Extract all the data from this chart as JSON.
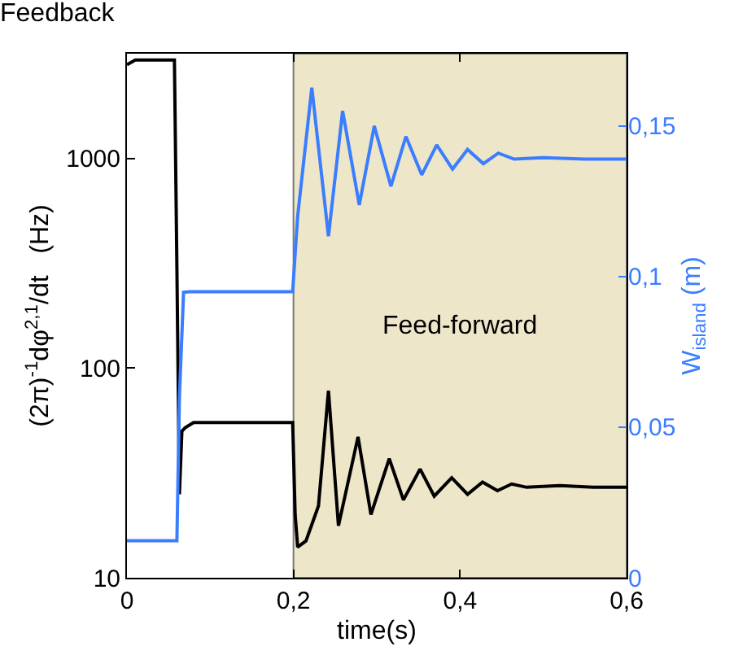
{
  "chart_data": {
    "type": "line",
    "title": "Feedback",
    "xlabel": "time(s)",
    "ylabel": "(2π)$^{-1}$dφ$^{2,1}$/dt   (Hz)",
    "y2label": "W$_{island}$ (m)",
    "xlim": [
      0,
      0.6
    ],
    "xticks": [
      0,
      {
        "value": 0.2,
        "label": "0,2"
      },
      {
        "value": 0.4,
        "label": "0,4"
      },
      {
        "value": 0.6,
        "label": "0,6"
      }
    ],
    "ylim": [
      10,
      3160
    ],
    "yticks": [
      10,
      100,
      1000
    ],
    "log": true,
    "y2lim": [
      0,
      0.174
    ],
    "y2ticks": [
      0,
      {
        "value": 0.05,
        "label": "0,05"
      },
      {
        "value": 0.1,
        "label": "0,1"
      },
      {
        "value": 0.15,
        "label": "0,15"
      }
    ],
    "grid": false,
    "line_style": "solid",
    "marker": "none",
    "bands": [
      {
        "axis": "x",
        "from": 0.2,
        "to": 0.6,
        "label": "Feed-forward",
        "color": "#eee6c8"
      }
    ],
    "series": [
      {
        "color": "#000000",
        "x": [
          0,
          0.01,
          0.03,
          0.057,
          0.06,
          0.063,
          0.066,
          0.07,
          0.08,
          0.12,
          0.199,
          0.202,
          0.205,
          0.215,
          0.23,
          0.242,
          0.254,
          0.2775,
          0.293,
          0.315,
          0.332,
          0.352,
          0.369,
          0.39,
          0.409,
          0.427,
          0.445,
          0.462,
          0.48,
          0.52,
          0.56,
          0.6
        ],
        "values": [
          2800,
          2950,
          2950,
          2950,
          300,
          25,
          50,
          52,
          55,
          55,
          55,
          20,
          14,
          15,
          22,
          78,
          17.7,
          47,
          20,
          37,
          23.5,
          33,
          24.5,
          30,
          25,
          28.6,
          26,
          28,
          27,
          27.5,
          27,
          27
        ]
      },
      {
        "color": "#3a7dff",
        "axis": "y2",
        "x": [
          0,
          0.06,
          0.063,
          0.068,
          0.075,
          0.1,
          0.199,
          0.205,
          0.222,
          0.242,
          0.259,
          0.279,
          0.297,
          0.317,
          0.335,
          0.354,
          0.372,
          0.391,
          0.409,
          0.428,
          0.446,
          0.465,
          0.5,
          0.55,
          0.6
        ],
        "values": [
          0.0123,
          0.0123,
          0.06,
          0.0948,
          0.095,
          0.095,
          0.095,
          0.12,
          0.1627,
          0.1134,
          0.155,
          0.1238,
          0.15,
          0.13,
          0.1465,
          0.1338,
          0.1437,
          0.1357,
          0.1422,
          0.1375,
          0.141,
          0.139,
          0.1395,
          0.139,
          0.139
        ]
      }
    ]
  }
}
